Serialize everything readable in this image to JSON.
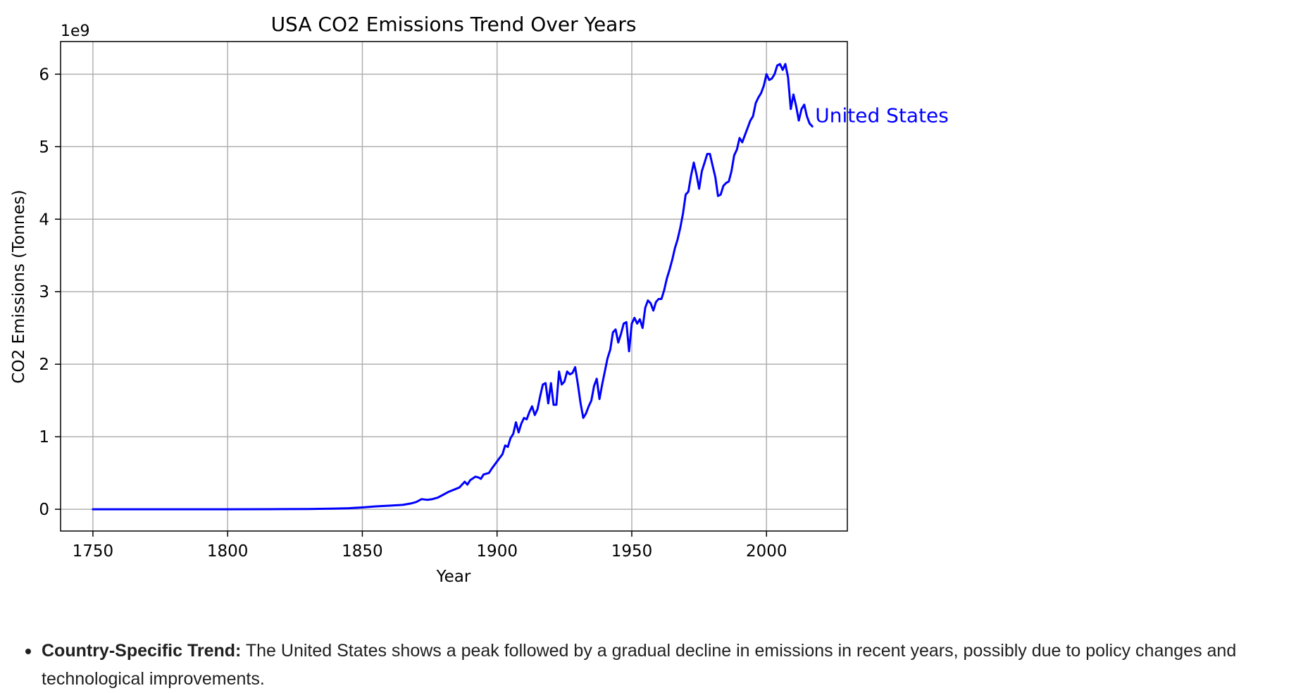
{
  "chart_data": {
    "type": "line",
    "title": "USA CO2 Emissions Trend Over Years",
    "xlabel": "Year",
    "ylabel": "CO2 Emissions (Tonnes)",
    "y_offset_label": "1e9",
    "xlim": [
      1738,
      2030
    ],
    "ylim": [
      -0.3,
      6.45
    ],
    "x_ticks": [
      1750,
      1800,
      1850,
      1900,
      1950,
      2000
    ],
    "y_ticks": [
      0,
      1,
      2,
      3,
      4,
      5,
      6
    ],
    "grid": true,
    "line_color": "#0000ff",
    "series": [
      {
        "name": "United States",
        "color": "#0000ff",
        "points": [
          [
            1750,
            0.0
          ],
          [
            1800,
            0.0
          ],
          [
            1820,
            0.002
          ],
          [
            1830,
            0.004
          ],
          [
            1840,
            0.01
          ],
          [
            1845,
            0.015
          ],
          [
            1850,
            0.025
          ],
          [
            1855,
            0.04
          ],
          [
            1860,
            0.05
          ],
          [
            1865,
            0.06
          ],
          [
            1868,
            0.08
          ],
          [
            1870,
            0.1
          ],
          [
            1872,
            0.14
          ],
          [
            1874,
            0.13
          ],
          [
            1876,
            0.14
          ],
          [
            1878,
            0.16
          ],
          [
            1880,
            0.2
          ],
          [
            1882,
            0.24
          ],
          [
            1884,
            0.27
          ],
          [
            1886,
            0.3
          ],
          [
            1888,
            0.38
          ],
          [
            1889,
            0.34
          ],
          [
            1890,
            0.4
          ],
          [
            1892,
            0.45
          ],
          [
            1893,
            0.44
          ],
          [
            1894,
            0.42
          ],
          [
            1895,
            0.48
          ],
          [
            1897,
            0.5
          ],
          [
            1898,
            0.56
          ],
          [
            1900,
            0.66
          ],
          [
            1902,
            0.76
          ],
          [
            1903,
            0.88
          ],
          [
            1904,
            0.86
          ],
          [
            1905,
            0.98
          ],
          [
            1906,
            1.04
          ],
          [
            1907,
            1.2
          ],
          [
            1908,
            1.06
          ],
          [
            1909,
            1.18
          ],
          [
            1910,
            1.26
          ],
          [
            1911,
            1.24
          ],
          [
            1912,
            1.34
          ],
          [
            1913,
            1.42
          ],
          [
            1914,
            1.3
          ],
          [
            1915,
            1.38
          ],
          [
            1916,
            1.56
          ],
          [
            1917,
            1.72
          ],
          [
            1918,
            1.74
          ],
          [
            1919,
            1.46
          ],
          [
            1920,
            1.74
          ],
          [
            1921,
            1.44
          ],
          [
            1922,
            1.44
          ],
          [
            1923,
            1.9
          ],
          [
            1924,
            1.72
          ],
          [
            1925,
            1.76
          ],
          [
            1926,
            1.9
          ],
          [
            1927,
            1.86
          ],
          [
            1928,
            1.88
          ],
          [
            1929,
            1.96
          ],
          [
            1930,
            1.72
          ],
          [
            1931,
            1.46
          ],
          [
            1932,
            1.26
          ],
          [
            1933,
            1.32
          ],
          [
            1934,
            1.42
          ],
          [
            1935,
            1.5
          ],
          [
            1936,
            1.7
          ],
          [
            1937,
            1.8
          ],
          [
            1938,
            1.52
          ],
          [
            1939,
            1.72
          ],
          [
            1940,
            1.9
          ],
          [
            1941,
            2.08
          ],
          [
            1942,
            2.2
          ],
          [
            1943,
            2.44
          ],
          [
            1944,
            2.48
          ],
          [
            1945,
            2.3
          ],
          [
            1946,
            2.42
          ],
          [
            1947,
            2.56
          ],
          [
            1948,
            2.58
          ],
          [
            1949,
            2.18
          ],
          [
            1950,
            2.56
          ],
          [
            1951,
            2.64
          ],
          [
            1952,
            2.56
          ],
          [
            1953,
            2.62
          ],
          [
            1954,
            2.5
          ],
          [
            1955,
            2.78
          ],
          [
            1956,
            2.88
          ],
          [
            1957,
            2.84
          ],
          [
            1958,
            2.74
          ],
          [
            1959,
            2.86
          ],
          [
            1960,
            2.9
          ],
          [
            1961,
            2.9
          ],
          [
            1962,
            3.02
          ],
          [
            1963,
            3.18
          ],
          [
            1964,
            3.3
          ],
          [
            1965,
            3.44
          ],
          [
            1966,
            3.6
          ],
          [
            1967,
            3.72
          ],
          [
            1968,
            3.88
          ],
          [
            1969,
            4.08
          ],
          [
            1970,
            4.34
          ],
          [
            1971,
            4.38
          ],
          [
            1972,
            4.6
          ],
          [
            1973,
            4.78
          ],
          [
            1974,
            4.62
          ],
          [
            1975,
            4.42
          ],
          [
            1976,
            4.66
          ],
          [
            1977,
            4.78
          ],
          [
            1978,
            4.9
          ],
          [
            1979,
            4.9
          ],
          [
            1980,
            4.74
          ],
          [
            1981,
            4.58
          ],
          [
            1982,
            4.32
          ],
          [
            1983,
            4.34
          ],
          [
            1984,
            4.46
          ],
          [
            1985,
            4.5
          ],
          [
            1986,
            4.52
          ],
          [
            1987,
            4.66
          ],
          [
            1988,
            4.88
          ],
          [
            1989,
            4.96
          ],
          [
            1990,
            5.12
          ],
          [
            1991,
            5.06
          ],
          [
            1992,
            5.16
          ],
          [
            1993,
            5.26
          ],
          [
            1994,
            5.36
          ],
          [
            1995,
            5.42
          ],
          [
            1996,
            5.6
          ],
          [
            1997,
            5.68
          ],
          [
            1998,
            5.74
          ],
          [
            1999,
            5.84
          ],
          [
            2000,
            6.0
          ],
          [
            2001,
            5.92
          ],
          [
            2002,
            5.94
          ],
          [
            2003,
            6.0
          ],
          [
            2004,
            6.12
          ],
          [
            2005,
            6.14
          ],
          [
            2006,
            6.06
          ],
          [
            2007,
            6.14
          ],
          [
            2008,
            5.96
          ],
          [
            2009,
            5.52
          ],
          [
            2010,
            5.72
          ],
          [
            2011,
            5.56
          ],
          [
            2012,
            5.36
          ],
          [
            2013,
            5.52
          ],
          [
            2014,
            5.58
          ],
          [
            2015,
            5.42
          ],
          [
            2016,
            5.32
          ],
          [
            2017,
            5.28
          ]
        ]
      }
    ]
  },
  "notes": [
    {
      "heading": "Country-Specific Trend:",
      "text": " The United States shows a peak followed by a gradual decline in emissions in recent years, possibly due to policy changes and technological improvements."
    }
  ]
}
